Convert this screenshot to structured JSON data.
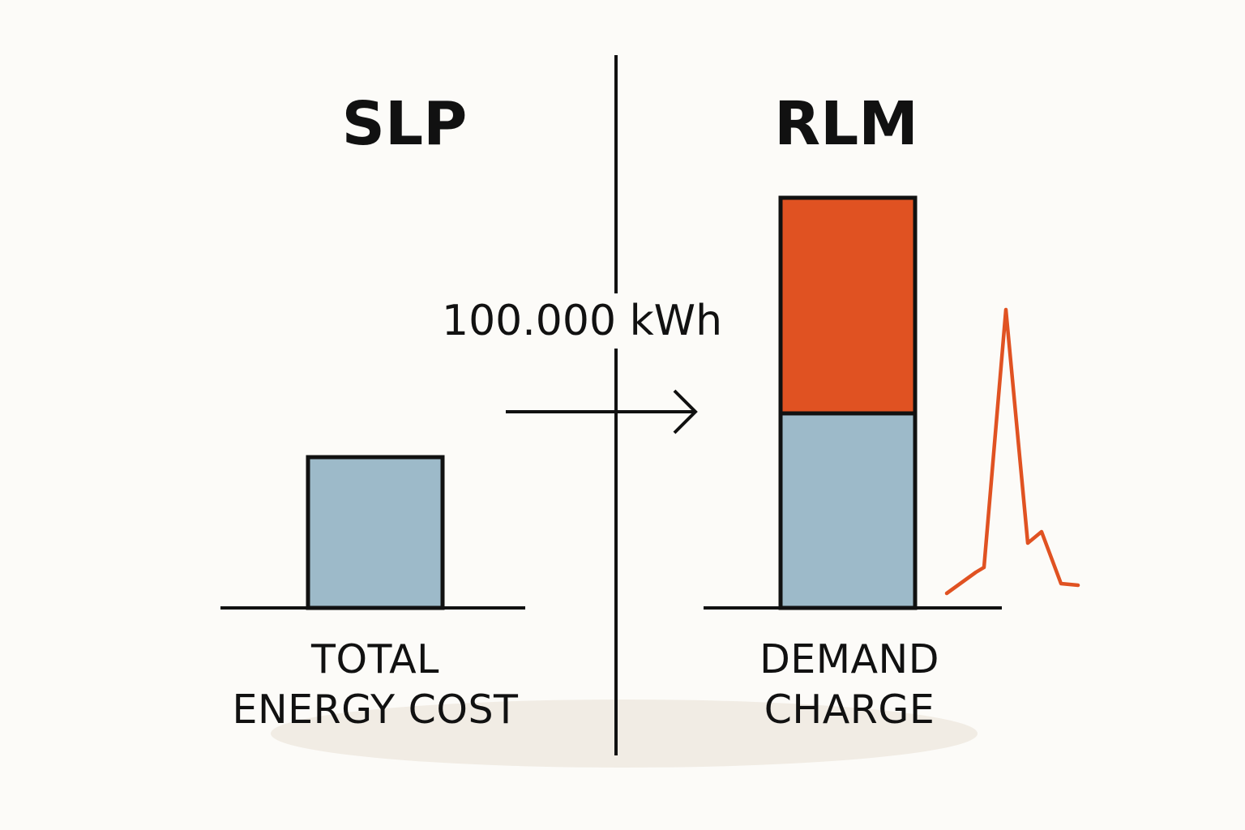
{
  "left": {
    "title": "SLP",
    "label_line1": "TOTAL",
    "label_line2": "ENERGY COST"
  },
  "right": {
    "title": "RLM",
    "label_line1": "DEMAND",
    "label_line2": "CHARGE"
  },
  "transition_label": "100.000 kWh",
  "colors": {
    "energy_bar": "#9dbac9",
    "demand_bar": "#e05222",
    "peak_line": "#e05222",
    "outline": "#111111",
    "background": "#fcfbf8",
    "floor_shadow": "#f1ece4"
  },
  "icons": {
    "arrow": "right-arrow-icon",
    "peak": "load-peak-curve-icon"
  }
}
